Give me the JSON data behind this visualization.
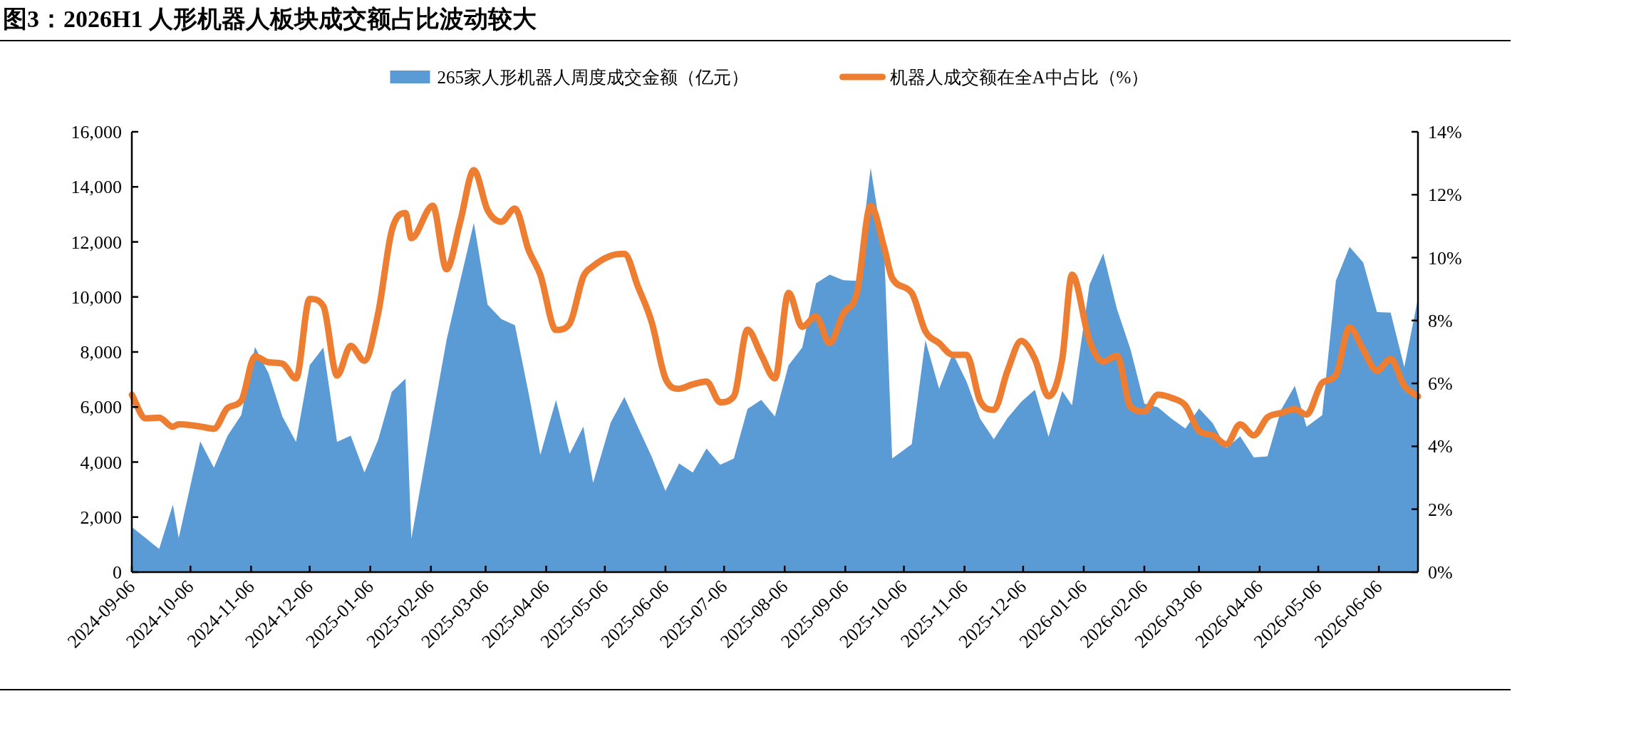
{
  "chart_data": {
    "type": "area",
    "title": "图3：2026H1 人形机器人板块成交额占比波动较大",
    "legend": "top",
    "x": [
      "2024-09-06",
      "2024-09-13",
      "2024-09-20",
      "2024-09-27",
      "2024-09-30",
      "2024-10-11",
      "2024-10-18",
      "2024-10-25",
      "2024-11-01",
      "2024-11-08",
      "2024-11-15",
      "2024-11-22",
      "2024-11-29",
      "2024-12-06",
      "2024-12-13",
      "2024-12-20",
      "2024-12-27",
      "2025-01-03",
      "2025-01-10",
      "2025-01-17",
      "2025-01-24",
      "2025-01-27",
      "2025-02-07",
      "2025-02-14",
      "2025-02-21",
      "2025-02-28",
      "2025-03-07",
      "2025-03-14",
      "2025-03-21",
      "2025-03-28",
      "2025-04-03",
      "2025-04-11",
      "2025-04-18",
      "2025-04-25",
      "2025-04-30",
      "2025-05-09",
      "2025-05-16",
      "2025-05-23",
      "2025-05-30",
      "2025-06-06",
      "2025-06-13",
      "2025-06-20",
      "2025-06-27",
      "2025-07-04",
      "2025-07-11",
      "2025-07-18",
      "2025-07-25",
      "2025-08-01",
      "2025-08-08",
      "2025-08-15",
      "2025-08-22",
      "2025-08-29",
      "2025-09-05",
      "2025-09-12",
      "2025-09-19",
      "2025-09-26",
      "2025-09-30",
      "2025-10-10",
      "2025-10-17",
      "2025-10-24",
      "2025-10-31",
      "2025-11-07",
      "2025-11-14",
      "2025-11-21",
      "2025-11-28",
      "2025-12-05",
      "2025-12-12",
      "2025-12-19",
      "2025-12-26",
      "2025-12-31",
      "2026-01-09",
      "2026-01-16",
      "2026-01-23",
      "2026-01-30",
      "2026-02-06",
      "2026-02-13",
      "2026-02-20",
      "2026-02-27",
      "2026-03-06",
      "2026-03-13",
      "2026-03-20",
      "2026-03-27",
      "2026-04-03",
      "2026-04-10",
      "2026-04-17",
      "2026-04-24",
      "2026-04-30",
      "2026-05-08",
      "2026-05-15",
      "2026-05-22",
      "2026-05-29",
      "2026-06-05",
      "2026-06-12",
      "2026-06-19",
      "2026-06-26"
    ],
    "series": [
      {
        "name": "265家人形机器人周度成交金额（亿元）",
        "type": "area",
        "color": "#5b9bd5",
        "values": [
          1640,
          1240,
          840,
          2450,
          1240,
          4750,
          3790,
          4960,
          5710,
          8180,
          7220,
          5660,
          4730,
          7520,
          8160,
          4730,
          4960,
          3620,
          4800,
          6550,
          7030,
          1210,
          5650,
          8430,
          10580,
          12690,
          9720,
          9200,
          8970,
          6500,
          4260,
          6250,
          4300,
          5290,
          3240,
          5440,
          6360,
          5260,
          4190,
          2950,
          3950,
          3620,
          4490,
          3900,
          4130,
          5930,
          6260,
          5660,
          7520,
          8160,
          10490,
          10810,
          10610,
          10580,
          14690,
          11540,
          4130,
          4650,
          8430,
          6660,
          7950,
          6930,
          5570,
          4830,
          5600,
          6190,
          6630,
          4920,
          6580,
          6060,
          10450,
          11580,
          9560,
          8080,
          6120,
          5990,
          5570,
          5220,
          5950,
          5410,
          4500,
          4940,
          4170,
          4210,
          5900,
          6770,
          5280,
          5700,
          10590,
          11820,
          11250,
          9450,
          9430,
          7450,
          9940
        ]
      },
      {
        "name": "机器人成交额在全A中占比（%）",
        "type": "line",
        "axis": "y2",
        "color": "#ed7d31",
        "values": [
          5.64,
          4.89,
          4.91,
          4.62,
          4.7,
          4.63,
          4.56,
          5.22,
          5.45,
          6.86,
          6.67,
          6.63,
          6.16,
          8.69,
          8.46,
          6.25,
          7.19,
          6.72,
          8.22,
          10.86,
          11.42,
          10.62,
          11.65,
          9.63,
          11.14,
          12.78,
          11.51,
          11.14,
          11.56,
          10.24,
          9.45,
          7.7,
          7.9,
          9.4,
          9.73,
          10.06,
          10.12,
          9.07,
          7.94,
          6.16,
          5.83,
          5.97,
          6.06,
          5.4,
          5.59,
          7.71,
          6.91,
          6.16,
          8.88,
          7.8,
          8.13,
          7.28,
          8.22,
          8.88,
          11.65,
          10.29,
          9.35,
          8.88,
          7.66,
          7.28,
          6.91,
          6.91,
          5.44,
          5.16,
          6.4,
          7.35,
          6.78,
          5.59,
          6.78,
          9.46,
          7.35,
          6.69,
          6.88,
          5.25,
          5.11,
          5.64,
          5.54,
          5.3,
          4.49,
          4.35,
          4.06,
          4.7,
          4.35,
          4.92,
          5.06,
          5.18,
          5.01,
          6.02,
          6.26,
          7.78,
          7.07,
          6.4,
          6.78,
          5.92,
          5.59
        ]
      }
    ],
    "xlim": [
      "2024-09-06",
      "2026-06-26"
    ],
    "xticks": [
      "2024-09-06",
      "2024-10-06",
      "2024-11-06",
      "2024-12-06",
      "2025-01-06",
      "2025-02-06",
      "2025-03-06",
      "2025-04-06",
      "2025-05-06",
      "2025-06-06",
      "2025-07-06",
      "2025-08-06",
      "2025-09-06",
      "2025-10-06",
      "2025-11-06",
      "2025-12-06",
      "2026-01-06",
      "2026-02-06",
      "2026-03-06",
      "2026-04-06",
      "2026-05-06",
      "2026-06-06"
    ],
    "ylim": [
      0,
      16000
    ],
    "yticks": [
      {
        "value": 0,
        "label": "0"
      },
      {
        "value": 2000,
        "label": "2,000"
      },
      {
        "value": 4000,
        "label": "4,000"
      },
      {
        "value": 6000,
        "label": "6,000"
      },
      {
        "value": 8000,
        "label": "8,000"
      },
      {
        "value": 10000,
        "label": "10,000"
      },
      {
        "value": 12000,
        "label": "12,000"
      },
      {
        "value": 14000,
        "label": "14,000"
      },
      {
        "value": 16000,
        "label": "16,000"
      }
    ],
    "y2lim": [
      0,
      14
    ],
    "y2ticks": [
      {
        "value": 0,
        "label": "0%"
      },
      {
        "value": 2,
        "label": "2%"
      },
      {
        "value": 4,
        "label": "4%"
      },
      {
        "value": 6,
        "label": "6%"
      },
      {
        "value": 8,
        "label": "8%"
      },
      {
        "value": 10,
        "label": "10%"
      },
      {
        "value": 12,
        "label": "12%"
      },
      {
        "value": 14,
        "label": "14%"
      }
    ]
  }
}
